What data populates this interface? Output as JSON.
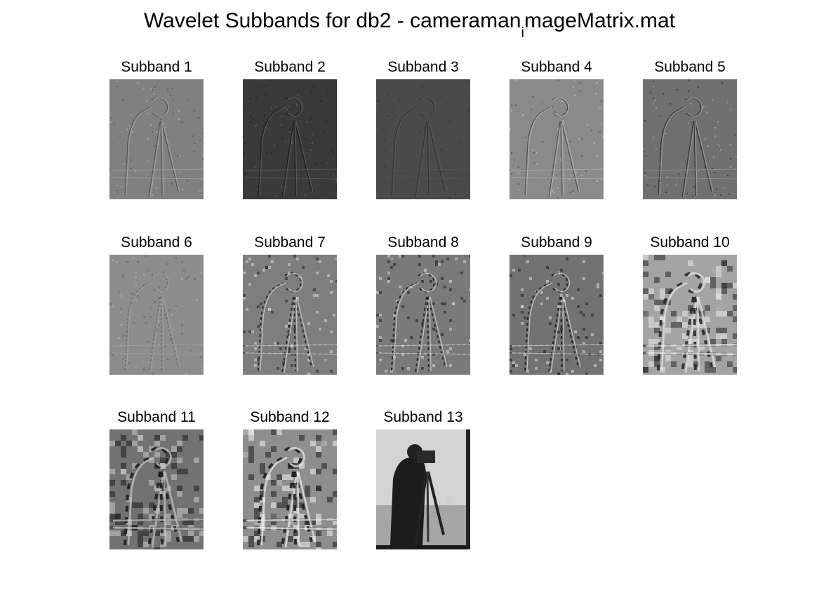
{
  "figure": {
    "title_before": "Wavelet Subbands for db2 - cameraman",
    "title_sub": "i",
    "title_after": "mageMatrix.mat"
  },
  "subbands": [
    {
      "label": "Subband 1",
      "bg": "#808080",
      "edge": "#4a4a4a",
      "hi": "#b8b8b8",
      "blockiness": 2
    },
    {
      "label": "Subband 2",
      "bg": "#3a3a3a",
      "edge": "#1a1a1a",
      "hi": "#6a6a6a",
      "blockiness": 2
    },
    {
      "label": "Subband 3",
      "bg": "#4a4a4a",
      "edge": "#2e2e2e",
      "hi": "#5e5e5e",
      "blockiness": 2
    },
    {
      "label": "Subband 4",
      "bg": "#8a8a8a",
      "edge": "#444444",
      "hi": "#c8c8c8",
      "blockiness": 2
    },
    {
      "label": "Subband 5",
      "bg": "#707070",
      "edge": "#222222",
      "hi": "#b0b0b0",
      "blockiness": 2
    },
    {
      "label": "Subband 6",
      "bg": "#8c8c8c",
      "edge": "#6a6a6a",
      "hi": "#a8a8a8",
      "blockiness": 3
    },
    {
      "label": "Subband 7",
      "bg": "#7e7e7e",
      "edge": "#222222",
      "hi": "#d8d8d8",
      "blockiness": 4
    },
    {
      "label": "Subband 8",
      "bg": "#7a7a7a",
      "edge": "#1e1e1e",
      "hi": "#dcdcdc",
      "blockiness": 4
    },
    {
      "label": "Subband 9",
      "bg": "#727272",
      "edge": "#1a1a1a",
      "hi": "#e0e0e0",
      "blockiness": 4
    },
    {
      "label": "Subband 10",
      "bg": "#a4a4a4",
      "edge": "#2a2a2a",
      "hi": "#e8e8e8",
      "blockiness": 8
    },
    {
      "label": "Subband 11",
      "bg": "#727272",
      "edge": "#1e1e1e",
      "hi": "#c8c8c8",
      "blockiness": 8
    },
    {
      "label": "Subband 12",
      "bg": "#8e8e8e",
      "edge": "#1e1e1e",
      "hi": "#f0f0f0",
      "blockiness": 8
    },
    {
      "label": "Subband 13",
      "bg": "#b8b8b8",
      "edge": "#1a1a1a",
      "hi": "#dcdcdc",
      "blockiness": 8,
      "approximation": true
    }
  ]
}
